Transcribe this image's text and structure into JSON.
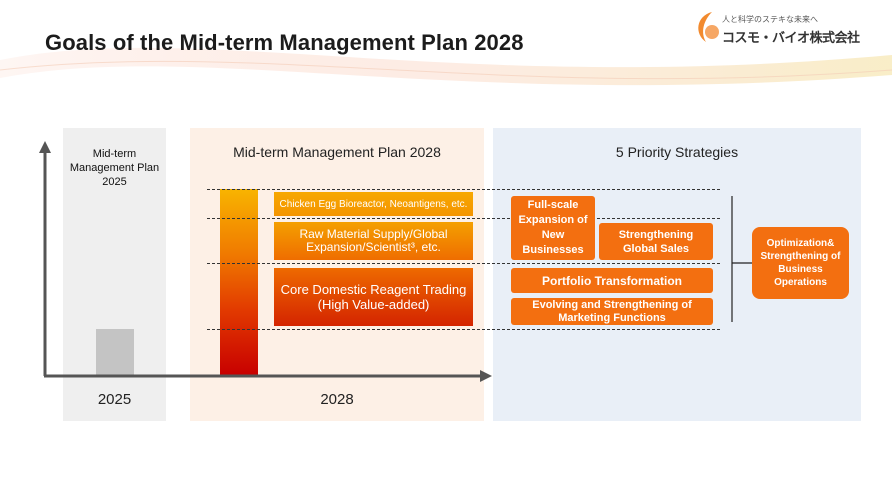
{
  "title": "Goals of the Mid-term Management Plan 2028",
  "logo": {
    "tagline": "人と科学のステキな未来へ",
    "name": "コスモ・バイオ株式会社"
  },
  "panels": {
    "plan2025_label": "Mid-term Management Plan 2025",
    "plan2028_label": "Mid-term Management Plan 2028",
    "strategies_label": "5 Priority Strategies"
  },
  "axis": {
    "year_2025": "2025",
    "year_2028": "2028"
  },
  "businesses": {
    "chicken_egg": "Chicken Egg Bioreactor, Neoantigens, etc.",
    "raw_material": "Raw Material Supply/Global Expansion/Scientist³, etc.",
    "core_domestic": "Core Domestic Reagent Trading (High Value-added)"
  },
  "strategies": {
    "new_businesses": "Full-scale Expansion of New Businesses",
    "global_sales": "Strengthening Global Sales",
    "portfolio": "Portfolio Transformation",
    "marketing": "Evolving and Strengthening of Marketing Functions",
    "operations": "Optimization& Strengthening of Business Operations"
  },
  "colors": {
    "accent_orange": "#f36f10",
    "bar_top": "#f8b400",
    "bar_bottom": "#c80000",
    "bar_2025": "#c4c4c4",
    "panel_2025": "#efefef",
    "panel_2028": "#fdf0e6",
    "panel_strategies": "#e9eff7"
  }
}
